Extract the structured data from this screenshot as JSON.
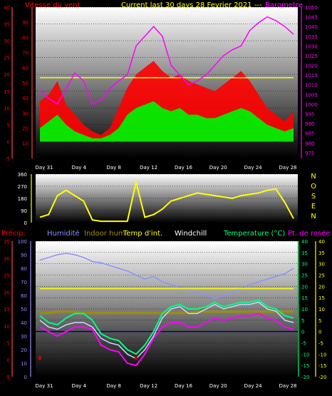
{
  "header": {
    "left_title": "Vitesse du vent",
    "center_title": "Current last 30 days 28 Fevrier 2021 ---",
    "right_title": "Barometre"
  },
  "colors": {
    "wind": "#ff0000",
    "gust_bar": "#00ee00",
    "barometer": "#ff00ff",
    "temp_int": "#ffff00",
    "humidity": "#8f8fff",
    "indoor_hum": "#a08e00",
    "windchill": "#ffffff",
    "temperature": "#00ff80",
    "dewpoint": "#ff00ff",
    "precip": "#ff0000",
    "rain": "#cc0000",
    "wind_dir": "#ffff00"
  },
  "x_axis": {
    "labels": [
      "Day 31",
      "Day 4",
      "Day 8",
      "Day 12",
      "Day 16",
      "Day 20",
      "Day 24",
      "Day 28"
    ]
  },
  "chart_data": [
    {
      "type": "line",
      "name": "wind-barometer-panel",
      "x": [
        1,
        2,
        3,
        4,
        5,
        6,
        7,
        8,
        9,
        10,
        11,
        12,
        13,
        14,
        15,
        16,
        17,
        18,
        19,
        20,
        21,
        22,
        23,
        24,
        25,
        26,
        27,
        28,
        29,
        30
      ],
      "left_axis": {
        "title": "Vitesse du vent",
        "ticks": [
          -5,
          0,
          5,
          10,
          15,
          20,
          25,
          30,
          35,
          40
        ],
        "ylim": [
          -5,
          40
        ]
      },
      "mid_axis": {
        "ticks": [
          10,
          20,
          30,
          40,
          50,
          60,
          70,
          80,
          90
        ],
        "ylim": [
          0,
          100
        ]
      },
      "right_axis": {
        "title": "Barometre",
        "ticks": [
          975,
          980,
          985,
          990,
          995,
          1000,
          1005,
          1010,
          1015,
          1020,
          1025,
          1030,
          1035,
          1040,
          1045,
          1050
        ],
        "ylim": [
          972,
          1050
        ]
      },
      "series": [
        {
          "values": [
            12,
            14,
            18,
            11,
            8,
            5,
            3,
            2,
            4,
            10,
            16,
            20,
            22,
            24,
            21,
            19,
            20,
            18,
            17,
            16,
            15,
            17,
            19,
            21,
            18,
            14,
            10,
            8,
            6,
            9
          ]
        },
        {
          "values": [
            4,
            6,
            8,
            5,
            3,
            2,
            1,
            1,
            2,
            4,
            8,
            10,
            11,
            12,
            10,
            9,
            10,
            8,
            8,
            7,
            7,
            8,
            9,
            10,
            9,
            7,
            5,
            4,
            3,
            4
          ]
        },
        {
          "values": [
            1007,
            1003,
            1000,
            1008,
            1016,
            1012,
            1000,
            1002,
            1008,
            1012,
            1015,
            1030,
            1035,
            1040,
            1035,
            1020,
            1015,
            1010,
            1012,
            1015,
            1020,
            1025,
            1028,
            1030,
            1038,
            1042,
            1045,
            1043,
            1040,
            1036
          ]
        },
        {
          "values": [
            19,
            19,
            19,
            19,
            19,
            19,
            19,
            19,
            19,
            19,
            19,
            19,
            19,
            19,
            19,
            19,
            19,
            19,
            19,
            19,
            19,
            19,
            19,
            19,
            19,
            19,
            19,
            19,
            19,
            19
          ]
        }
      ]
    },
    {
      "type": "line",
      "name": "wind-direction-panel",
      "x": [
        1,
        2,
        3,
        4,
        5,
        6,
        7,
        8,
        9,
        10,
        11,
        12,
        13,
        14,
        15,
        16,
        17,
        18,
        19,
        20,
        21,
        22,
        23,
        24,
        25,
        26,
        27,
        28,
        29,
        30
      ],
      "left_axis": {
        "ticks": [
          0,
          90,
          180,
          270,
          360
        ],
        "ylim": [
          0,
          360
        ]
      },
      "compass_labels": [
        "N",
        "O",
        "S",
        "E",
        "N"
      ],
      "series": [
        {
          "values": [
            40,
            60,
            200,
            240,
            200,
            160,
            20,
            10,
            10,
            10,
            10,
            300,
            40,
            60,
            100,
            160,
            180,
            200,
            220,
            210,
            200,
            190,
            180,
            200,
            210,
            220,
            240,
            250,
            150,
            30
          ]
        }
      ]
    },
    {
      "type": "line",
      "name": "temperature-humidity-panel",
      "header_labels": [
        "Précip.",
        "Humidité",
        "Indoor hum",
        "Temp d'int.",
        "Windchill",
        "Temperature (°C)",
        "Pt. de rosée"
      ],
      "x": [
        1,
        2,
        3,
        4,
        5,
        6,
        7,
        8,
        9,
        10,
        11,
        12,
        13,
        14,
        15,
        16,
        17,
        18,
        19,
        20,
        21,
        22,
        23,
        24,
        25,
        26,
        27,
        28,
        29,
        30
      ],
      "precip_axis": {
        "ticks": [
          -5,
          0,
          5,
          10,
          15,
          20,
          25,
          30,
          35
        ],
        "ylim": [
          -5,
          35
        ]
      },
      "humidity_axis": {
        "ticks": [
          0,
          10,
          20,
          30,
          40,
          50,
          60,
          70,
          80,
          90,
          100
        ],
        "ylim": [
          0,
          100
        ]
      },
      "temp_axis_left": {
        "ticks": [
          -20,
          -15,
          -10,
          -5,
          0,
          5,
          10,
          15,
          20,
          25,
          30,
          35,
          40
        ],
        "ylim": [
          -20,
          40
        ]
      },
      "temp_axis_right": {
        "ticks": [
          -20,
          -15,
          -10,
          -5,
          0,
          5,
          10,
          15,
          20,
          25,
          30,
          35,
          40
        ],
        "ylim": [
          -20,
          40
        ]
      },
      "series": [
        {
          "values": [
            86,
            88,
            90,
            91,
            90,
            88,
            85,
            84,
            82,
            80,
            78,
            75,
            72,
            74,
            70,
            68,
            66,
            64,
            62,
            60,
            58,
            60,
            62,
            65,
            68,
            70,
            72,
            74,
            76,
            80
          ]
        },
        {
          "values": [
            47,
            47,
            48,
            48,
            48,
            47,
            47,
            47,
            47,
            47,
            47,
            47,
            47,
            47,
            47,
            47,
            47,
            47,
            48,
            48,
            48,
            48,
            48,
            48,
            48,
            48,
            48,
            48,
            48,
            48
          ]
        },
        {
          "values": [
            19,
            19,
            19,
            19,
            19,
            19,
            19,
            19,
            19,
            19,
            19,
            19,
            19,
            19,
            19,
            19,
            19,
            19,
            19,
            19,
            19,
            19,
            19,
            19,
            19,
            19,
            19,
            19,
            19,
            19
          ]
        },
        {
          "values": [
            5,
            2,
            1,
            3,
            4,
            4,
            2,
            -3,
            -5,
            -6,
            -10,
            -12,
            -8,
            -2,
            6,
            10,
            11,
            8,
            8,
            10,
            12,
            10,
            11,
            12,
            12,
            13,
            10,
            9,
            5,
            4
          ]
        },
        {
          "values": [
            7,
            4,
            3,
            6,
            8,
            8,
            5,
            -1,
            -3,
            -4,
            -8,
            -10,
            -6,
            0,
            8,
            11,
            12,
            10,
            10,
            11,
            13,
            11,
            12,
            13,
            13,
            14,
            11,
            10,
            7,
            6
          ]
        },
        {
          "values": [
            2,
            0,
            -2,
            0,
            2,
            2,
            1,
            -6,
            -8,
            -9,
            -14,
            -15,
            -10,
            -3,
            2,
            4,
            4,
            2,
            2,
            4,
            6,
            5,
            6,
            7,
            7,
            8,
            6,
            5,
            2,
            1
          ]
        },
        {
          "values": [
            1,
            0,
            0,
            0,
            0,
            0,
            0,
            0,
            0,
            0,
            0,
            1,
            0,
            0,
            0,
            0,
            0,
            0,
            0,
            0,
            0,
            0,
            0,
            0,
            0,
            0,
            0,
            0,
            0,
            0
          ]
        }
      ]
    }
  ]
}
